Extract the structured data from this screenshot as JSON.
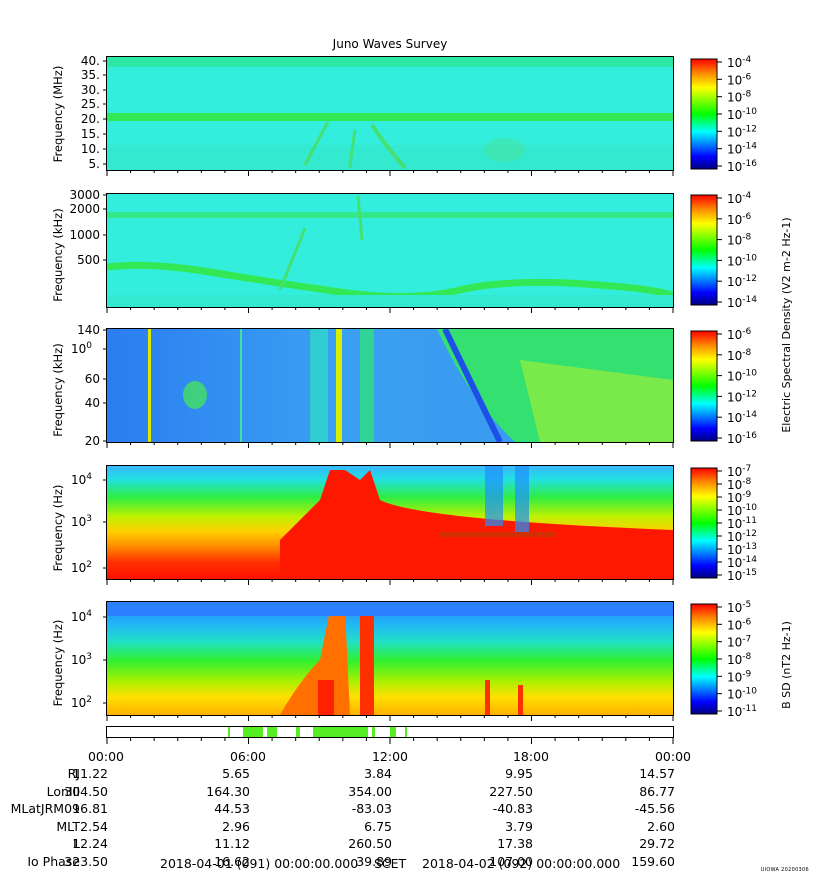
{
  "title": "Juno Waves Survey",
  "colors": {
    "jet": [
      "#00007f",
      "#0000ff",
      "#007fff",
      "#00ffff",
      "#00ff7f",
      "#00ff00",
      "#7fff00",
      "#ffff00",
      "#ff7f00",
      "#ff0000"
    ],
    "cyan_bg": "#33eedd",
    "burst_bar": "#55ee22"
  },
  "chart_data": [
    {
      "type": "heatmap",
      "panel": "HFR high",
      "ylabel": "Frequency (MHz)",
      "yticks": [
        "40.",
        "35.",
        "30.",
        "25.",
        "20.",
        "15.",
        "10.",
        "5."
      ],
      "ylim": [
        3,
        41
      ],
      "colorbar": {
        "ticks": [
          "10-4",
          "10-6",
          "10-8",
          "10-10",
          "10-12",
          "10-14",
          "10-16"
        ]
      }
    },
    {
      "type": "heatmap",
      "panel": "HFR low",
      "ylabel": "Frequency (kHz)",
      "yticks": [
        "3000",
        "2000",
        "1000",
        "500"
      ],
      "colorbar": {
        "ticks": [
          "10-4",
          "10-6",
          "10-8",
          "10-10",
          "10-12",
          "10-14"
        ],
        "label": "Electric Spectral Density (V2 m-2 Hz-1)"
      }
    },
    {
      "type": "heatmap",
      "panel": "LFR high",
      "ylabel": "Frequency (kHz)",
      "yticks": [
        "140",
        "100",
        "60",
        "40",
        "20"
      ],
      "colorbar": {
        "ticks": [
          "10-6",
          "10-8",
          "10-10",
          "10-12",
          "10-14",
          "10-16"
        ]
      }
    },
    {
      "type": "heatmap",
      "panel": "LFR low E",
      "ylabel": "Frequency (Hz)",
      "yticks": [
        "104",
        "103",
        "102"
      ],
      "colorbar": {
        "ticks": [
          "10-7",
          "10-8",
          "10-9",
          "10-10",
          "10-11",
          "10-12",
          "10-13",
          "10-14",
          "10-15"
        ]
      }
    },
    {
      "type": "heatmap",
      "panel": "LFR low B",
      "ylabel": "Frequency (Hz)",
      "yticks": [
        "104",
        "103",
        "102"
      ],
      "colorbar": {
        "ticks": [
          "10-5",
          "10-6",
          "10-7",
          "10-8",
          "10-9",
          "10-10",
          "10-11"
        ],
        "label": "B SD (nT2 Hz-1)"
      }
    }
  ],
  "time_axis": [
    "00:00",
    "06:00",
    "12:00",
    "18:00",
    "00:00"
  ],
  "ephemeris": [
    {
      "label": "RJ",
      "values": [
        "11.22",
        "5.65",
        "3.84",
        "9.95",
        "14.57"
      ]
    },
    {
      "label": "LonIII",
      "values": [
        "304.50",
        "164.30",
        "354.00",
        "227.50",
        "86.77"
      ]
    },
    {
      "label": "MLatJRM09",
      "values": [
        "16.81",
        "44.53",
        "-83.03",
        "-40.83",
        "-45.56"
      ]
    },
    {
      "label": "MLT",
      "values": [
        "2.54",
        "2.96",
        "6.75",
        "3.79",
        "2.60"
      ]
    },
    {
      "label": "L",
      "values": [
        "12.24",
        "11.12",
        "260.50",
        "17.38",
        "29.72"
      ]
    },
    {
      "label": "Io Phase",
      "values": [
        "323.50",
        "16.62",
        "39.89",
        "107.00",
        "159.60"
      ]
    }
  ],
  "footer": {
    "start": "2018-04-01 (091) 00:00:00.000",
    "mid": "SCET",
    "end": "2018-04-02 (092) 00:00:00.000"
  },
  "stamp": "UIOWA 20200306"
}
